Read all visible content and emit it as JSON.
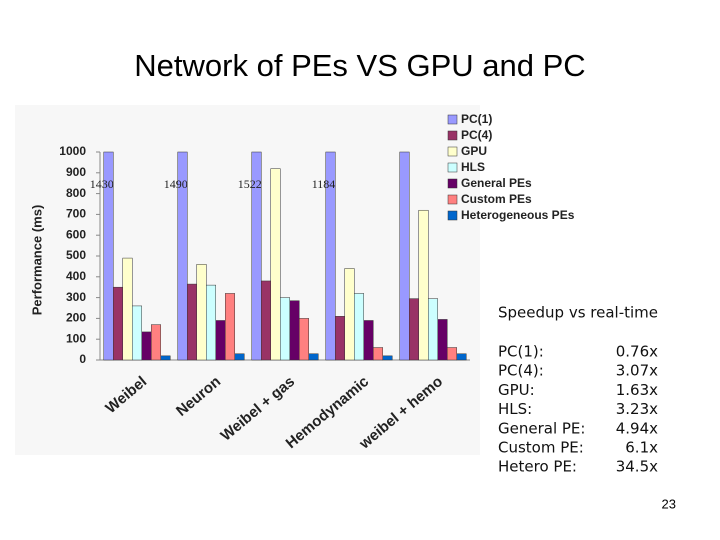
{
  "chart_data": {
    "type": "bar",
    "title": "Network of PEs VS GPU and PC",
    "y_label": "Performance (ms)",
    "categories": [
      "Weibel",
      "Neuron",
      "Weibel + gas",
      "Hemodynamic",
      "weibel + hemo"
    ],
    "series": [
      {
        "name": "PC(1)",
        "color": "#9999ff",
        "values": [
          1430,
          1490,
          1522,
          1184,
          1000
        ],
        "value_labels": [
          "1430",
          "1490",
          "1522",
          "1184",
          null
        ]
      },
      {
        "name": "PC(4)",
        "color": "#993366",
        "values": [
          350,
          365,
          380,
          210,
          295
        ]
      },
      {
        "name": "GPU",
        "color": "#ffffcc",
        "values": [
          490,
          460,
          920,
          440,
          720
        ]
      },
      {
        "name": "HLS",
        "color": "#ccffff",
        "values": [
          260,
          360,
          300,
          320,
          295
        ]
      },
      {
        "name": "General PEs",
        "color": "#660066",
        "values": [
          135,
          190,
          285,
          190,
          195
        ]
      },
      {
        "name": "Custom PEs",
        "color": "#ff8080",
        "values": [
          170,
          320,
          200,
          60,
          60
        ]
      },
      {
        "name": "Heterogeneous PEs",
        "color": "#0066cc",
        "values": [
          20,
          30,
          30,
          20,
          30
        ]
      }
    ],
    "ylim": [
      0,
      1000
    ],
    "yticks": [
      0,
      100,
      200,
      300,
      400,
      500,
      600,
      700,
      800,
      900,
      1000
    ]
  },
  "speedup": {
    "heading": "Speedup vs real-time",
    "rows": [
      [
        "PC(1):",
        "0.76x"
      ],
      [
        "PC(4):",
        "3.07x"
      ],
      [
        "GPU:",
        "1.63x"
      ],
      [
        "HLS:",
        "3.23x"
      ],
      [
        "General PE:",
        "4.94x"
      ],
      [
        "Custom PE:",
        "6.1x"
      ],
      [
        "Hetero PE:",
        "34.5x"
      ]
    ]
  },
  "page_number": "23"
}
